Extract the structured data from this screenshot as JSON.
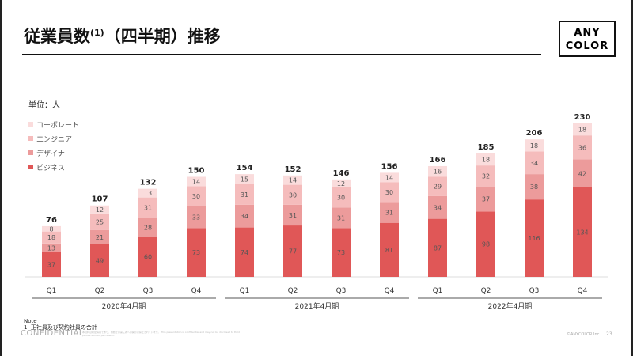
{
  "slide": {
    "title": "従業員数",
    "title_sup": "(1)",
    "title_suffix": "（四半期）推移",
    "logo_line1": "ANY",
    "logo_line2": "COLOR",
    "unit_label": "単位：人",
    "note_heading": "Note",
    "note_text": "1. 正社員及び契約社員の合計",
    "confidential": "CONFIDENTIAL",
    "fine_print": "本資料は秘密情報であり、無断での第三者への開示は禁止されています。 This presentation is confidential and may not be disclosed to third parties without permission.",
    "copyright": "©ANYCOLOR Inc.",
    "page_number": "23"
  },
  "chart_data": {
    "type": "bar",
    "stacked": true,
    "title": "従業員数(1)（四半期）推移",
    "ylabel": "単位：人",
    "categories": [
      "Q1",
      "Q2",
      "Q3",
      "Q4",
      "Q1",
      "Q2",
      "Q3",
      "Q4",
      "Q1",
      "Q2",
      "Q3",
      "Q4"
    ],
    "groups": [
      {
        "label": "2020年4月期",
        "from": 0,
        "to": 3
      },
      {
        "label": "2021年4月期",
        "from": 4,
        "to": 7
      },
      {
        "label": "2022年4月期",
        "from": 8,
        "to": 11
      }
    ],
    "series": [
      {
        "name": "ビジネス",
        "color": "#e05757",
        "values": [
          37,
          49,
          60,
          73,
          74,
          77,
          73,
          81,
          87,
          98,
          116,
          134
        ]
      },
      {
        "name": "デザイナー",
        "color": "#ec9b9b",
        "values": [
          13,
          21,
          28,
          33,
          34,
          31,
          31,
          31,
          34,
          37,
          38,
          42
        ]
      },
      {
        "name": "エンジニア",
        "color": "#f5bcbc",
        "values": [
          18,
          25,
          31,
          30,
          31,
          30,
          30,
          30,
          29,
          32,
          34,
          36
        ]
      },
      {
        "name": "コーポレート",
        "color": "#fadcdc",
        "values": [
          8,
          12,
          13,
          14,
          15,
          14,
          12,
          14,
          16,
          18,
          18,
          18
        ]
      }
    ],
    "totals": [
      76,
      107,
      132,
      150,
      154,
      152,
      146,
      156,
      166,
      185,
      206,
      230
    ],
    "ylim": [
      0,
      230
    ],
    "legend_position": "top-left",
    "grid": false
  }
}
